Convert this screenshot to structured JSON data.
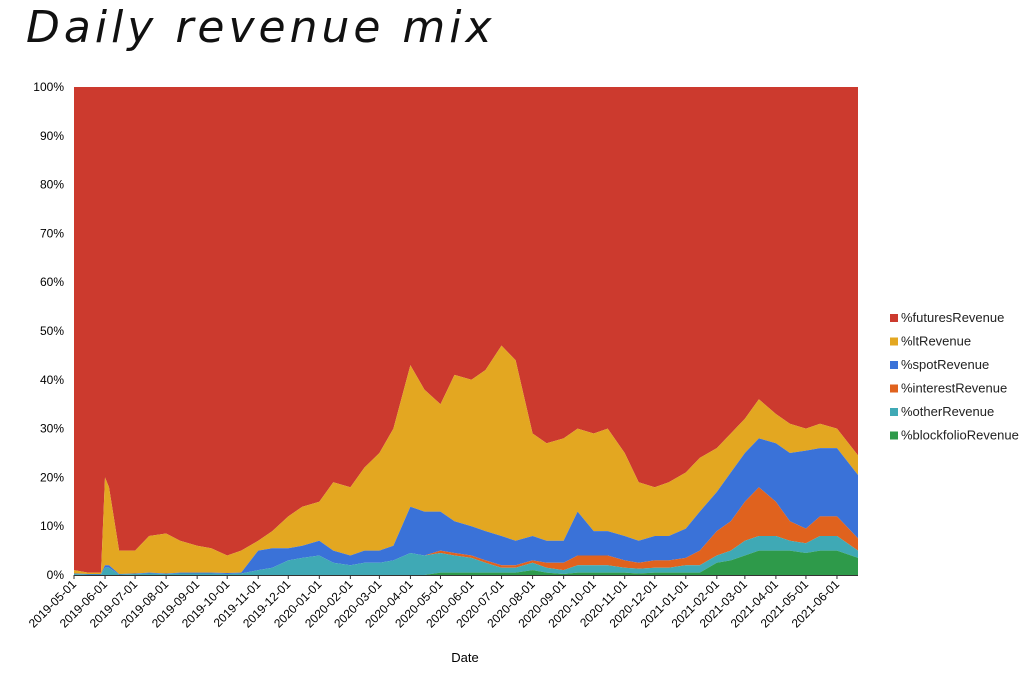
{
  "chart_data": {
    "type": "area",
    "stacked": true,
    "normalized_percent": true,
    "title": "Daily revenue mix",
    "xlabel": "Date",
    "ylabel": "",
    "ylim": [
      0,
      100
    ],
    "yticks": [
      0,
      10,
      20,
      30,
      40,
      50,
      60,
      70,
      80,
      90,
      100
    ],
    "ytick_labels": [
      "0%",
      "10%",
      "20%",
      "30%",
      "40%",
      "50%",
      "60%",
      "70%",
      "80%",
      "90%",
      "100%"
    ],
    "x_start": "2019-05-01",
    "x_end": "2021-06-22",
    "xtick_labels": [
      "2019-05-01",
      "2019-06-01",
      "2019-07-01",
      "2019-08-01",
      "2019-09-01",
      "2019-10-01",
      "2019-11-01",
      "2019-12-01",
      "2020-01-01",
      "2020-02-01",
      "2020-03-01",
      "2020-04-01",
      "2020-05-01",
      "2020-06-01",
      "2020-07-01",
      "2020-08-01",
      "2020-09-01",
      "2020-10-01",
      "2020-11-01",
      "2020-12-01",
      "2021-01-01",
      "2021-02-01",
      "2021-03-01",
      "2021-04-01",
      "2021-05-01",
      "2021-06-01"
    ],
    "legend_placement": "right",
    "grid": false,
    "x": [
      "2019-05-01",
      "2019-05-15",
      "2019-05-28",
      "2019-06-01",
      "2019-06-05",
      "2019-06-15",
      "2019-07-01",
      "2019-07-15",
      "2019-08-01",
      "2019-08-15",
      "2019-09-01",
      "2019-09-15",
      "2019-10-01",
      "2019-10-15",
      "2019-11-01",
      "2019-11-15",
      "2019-12-01",
      "2019-12-15",
      "2020-01-01",
      "2020-01-15",
      "2020-02-01",
      "2020-02-15",
      "2020-03-01",
      "2020-03-15",
      "2020-04-01",
      "2020-04-15",
      "2020-05-01",
      "2020-05-15",
      "2020-06-01",
      "2020-06-15",
      "2020-07-01",
      "2020-07-15",
      "2020-08-01",
      "2020-08-15",
      "2020-09-01",
      "2020-09-15",
      "2020-10-01",
      "2020-10-15",
      "2020-11-01",
      "2020-11-15",
      "2020-12-01",
      "2020-12-15",
      "2021-01-01",
      "2021-01-15",
      "2021-02-01",
      "2021-02-15",
      "2021-03-01",
      "2021-03-15",
      "2021-04-01",
      "2021-04-15",
      "2021-05-01",
      "2021-05-15",
      "2021-06-01",
      "2021-06-22"
    ],
    "series": [
      {
        "name": "%futuresRevenue",
        "color": "#cc3a2e",
        "values": [
          99.0,
          99.5,
          99.5,
          80.0,
          82.0,
          95.0,
          95.0,
          92.0,
          91.5,
          93.0,
          94.0,
          94.5,
          96.0,
          95.0,
          93.0,
          91.0,
          88.0,
          86.0,
          85.0,
          81.0,
          82.0,
          78.0,
          75.0,
          70.0,
          57.0,
          62.0,
          65.0,
          59.0,
          60.0,
          58.0,
          53.0,
          56.0,
          71.0,
          73.0,
          72.0,
          70.0,
          71.0,
          70.0,
          75.0,
          81.0,
          82.0,
          81.0,
          79.0,
          76.0,
          74.0,
          71.0,
          68.0,
          64.0,
          67.0,
          69.0,
          70.0,
          69.0,
          70.0,
          75.5
        ]
      },
      {
        "name": "%ltRevenue",
        "color": "#e3a721",
        "values": [
          0.7,
          0.3,
          0.3,
          18.0,
          16.0,
          4.8,
          4.7,
          7.5,
          8.2,
          6.5,
          5.5,
          5.0,
          3.6,
          4.5,
          2.0,
          3.5,
          6.5,
          8.0,
          8.0,
          14.0,
          14.0,
          17.0,
          20.0,
          24.0,
          29.0,
          25.0,
          22.0,
          30.0,
          30.0,
          33.0,
          39.0,
          37.0,
          21.0,
          20.0,
          21.0,
          17.0,
          20.0,
          21.0,
          17.0,
          12.0,
          10.0,
          11.0,
          11.5,
          11.0,
          9.0,
          8.0,
          7.0,
          8.0,
          6.0,
          6.0,
          4.5,
          5.0,
          4.0,
          4.0
        ]
      },
      {
        "name": "%spotRevenue",
        "color": "#3a72d8",
        "values": [
          0.1,
          0.1,
          0.1,
          0.5,
          0.5,
          0.1,
          0.1,
          0.2,
          0.1,
          0.2,
          0.2,
          0.2,
          0.2,
          0.2,
          4.0,
          4.0,
          2.5,
          2.5,
          3.0,
          2.5,
          2.0,
          2.5,
          2.5,
          3.0,
          9.5,
          9.0,
          8.0,
          6.5,
          6.0,
          6.0,
          6.0,
          5.0,
          5.0,
          4.5,
          4.5,
          9.0,
          5.0,
          5.0,
          5.0,
          4.5,
          5.0,
          5.0,
          6.0,
          8.0,
          8.0,
          10.0,
          10.0,
          10.0,
          12.0,
          14.0,
          16.0,
          14.0,
          14.0,
          13.0
        ]
      },
      {
        "name": "%interestRevenue",
        "color": "#e0621e",
        "values": [
          0.0,
          0.0,
          0.0,
          0.0,
          0.0,
          0.0,
          0.0,
          0.0,
          0.0,
          0.0,
          0.0,
          0.0,
          0.0,
          0.0,
          0.0,
          0.0,
          0.0,
          0.0,
          0.0,
          0.0,
          0.0,
          0.0,
          0.0,
          0.0,
          0.0,
          0.0,
          0.5,
          0.5,
          0.5,
          0.5,
          0.5,
          0.5,
          0.5,
          1.0,
          1.5,
          2.0,
          2.0,
          2.0,
          1.5,
          1.2,
          1.5,
          1.5,
          1.5,
          3.0,
          5.0,
          6.0,
          8.0,
          10.0,
          7.0,
          4.0,
          3.0,
          4.0,
          4.0,
          2.5
        ]
      },
      {
        "name": "%otherRevenue",
        "color": "#3fa9b5",
        "values": [
          0.2,
          0.1,
          0.1,
          1.5,
          1.5,
          0.1,
          0.2,
          0.3,
          0.2,
          0.3,
          0.3,
          0.3,
          0.2,
          0.3,
          1.0,
          1.5,
          3.0,
          3.5,
          4.0,
          2.5,
          2.0,
          2.5,
          2.5,
          3.0,
          4.5,
          4.0,
          4.0,
          3.5,
          3.0,
          2.0,
          1.0,
          1.0,
          1.5,
          1.0,
          0.8,
          1.5,
          1.5,
          1.5,
          1.0,
          1.0,
          1.0,
          1.0,
          1.5,
          1.5,
          1.5,
          2.0,
          3.0,
          3.0,
          3.0,
          2.0,
          2.0,
          3.0,
          3.0,
          1.5
        ]
      },
      {
        "name": "%blockfolioRevenue",
        "color": "#2e9a4a",
        "values": [
          0.0,
          0.0,
          0.0,
          0.0,
          0.0,
          0.0,
          0.0,
          0.0,
          0.0,
          0.0,
          0.0,
          0.0,
          0.0,
          0.0,
          0.0,
          0.0,
          0.0,
          0.0,
          0.0,
          0.0,
          0.0,
          0.0,
          0.0,
          0.0,
          0.0,
          0.0,
          0.5,
          0.5,
          0.5,
          0.5,
          0.5,
          0.5,
          1.0,
          0.5,
          0.2,
          0.5,
          0.5,
          0.5,
          0.5,
          0.3,
          0.5,
          0.5,
          0.5,
          0.5,
          2.5,
          3.0,
          4.0,
          5.0,
          5.0,
          5.0,
          4.5,
          5.0,
          5.0,
          3.5
        ]
      }
    ]
  }
}
